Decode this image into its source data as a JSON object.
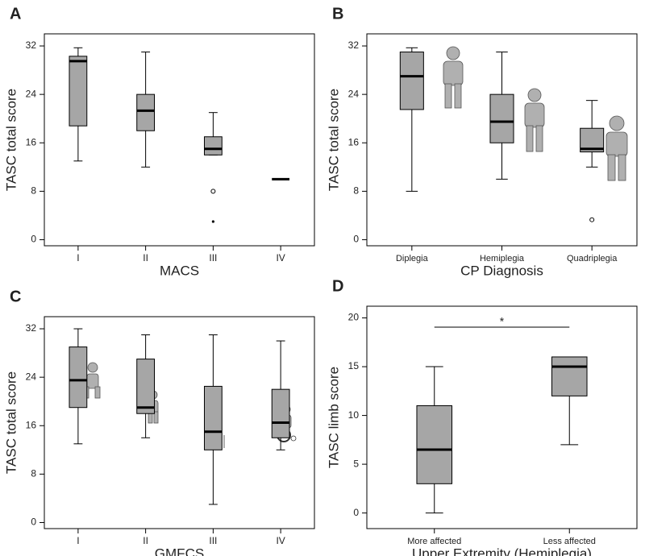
{
  "chart_data": [
    {
      "type": "box",
      "panel": "A",
      "xlabel": "MACS",
      "ylabel": "TASC total score",
      "categories": [
        "I",
        "II",
        "III",
        "IV"
      ],
      "min": [
        13,
        12,
        14,
        10
      ],
      "q1": [
        18.8,
        18,
        14,
        10
      ],
      "median": [
        29.5,
        21.3,
        15,
        10
      ],
      "q3": [
        30.3,
        24,
        17,
        10
      ],
      "max": [
        31.7,
        31,
        21,
        10
      ],
      "outliers": [
        [],
        [],
        [
          8
        ],
        []
      ],
      "extremes": [
        [],
        [],
        [
          3
        ],
        []
      ],
      "color": "#a6a6a6",
      "ylim": [
        -1,
        34
      ],
      "yticks": [
        0,
        8,
        16,
        24,
        32
      ]
    },
    {
      "type": "box",
      "panel": "B",
      "xlabel": "CP Diagnosis",
      "ylabel": "TASC total score",
      "categories": [
        "Diplegia",
        "Hemiplegia",
        "Quadriplegia"
      ],
      "min": [
        8,
        10,
        12
      ],
      "q1": [
        21.5,
        16,
        14.5
      ],
      "median": [
        27,
        19.5,
        15
      ],
      "q3": [
        31,
        24,
        18.4
      ],
      "max": [
        31.7,
        31,
        23
      ],
      "outliers": [
        [],
        [],
        [
          3.3
        ]
      ],
      "extremes": [
        [],
        [],
        []
      ],
      "color": "#a6a6a6",
      "ylim": [
        -1,
        34
      ],
      "yticks": [
        0,
        8,
        16,
        24,
        32
      ]
    },
    {
      "type": "box",
      "panel": "C",
      "xlabel": "GMFCS",
      "ylabel": "TASC total score",
      "categories": [
        "I",
        "II",
        "III",
        "IV"
      ],
      "min": [
        13,
        14,
        3,
        12
      ],
      "q1": [
        19,
        18,
        12,
        14
      ],
      "median": [
        23.5,
        19,
        15,
        16.5
      ],
      "q3": [
        29,
        27,
        22.5,
        22
      ],
      "max": [
        32,
        31,
        31,
        30
      ],
      "outliers": [
        [],
        [],
        [],
        []
      ],
      "extremes": [
        [],
        [],
        [],
        []
      ],
      "color": "#a6a6a6",
      "ylim": [
        -1,
        34
      ],
      "yticks": [
        0,
        8,
        16,
        24,
        32
      ]
    },
    {
      "type": "box",
      "panel": "D",
      "xlabel": "Upper Extremity (Hemiplegia)",
      "ylabel": "TASC limb score",
      "categories": [
        "More affected",
        "Less affected"
      ],
      "min": [
        0,
        7
      ],
      "q1": [
        3,
        12
      ],
      "median": [
        6.5,
        15
      ],
      "q3": [
        11,
        16
      ],
      "max": [
        15,
        16
      ],
      "outliers": [
        [],
        []
      ],
      "extremes": [
        [],
        []
      ],
      "annotation": "*",
      "color": "#a6a6a6",
      "ylim": [
        -1.6,
        21.2
      ],
      "yticks": [
        0,
        5,
        10,
        15,
        20
      ]
    }
  ]
}
